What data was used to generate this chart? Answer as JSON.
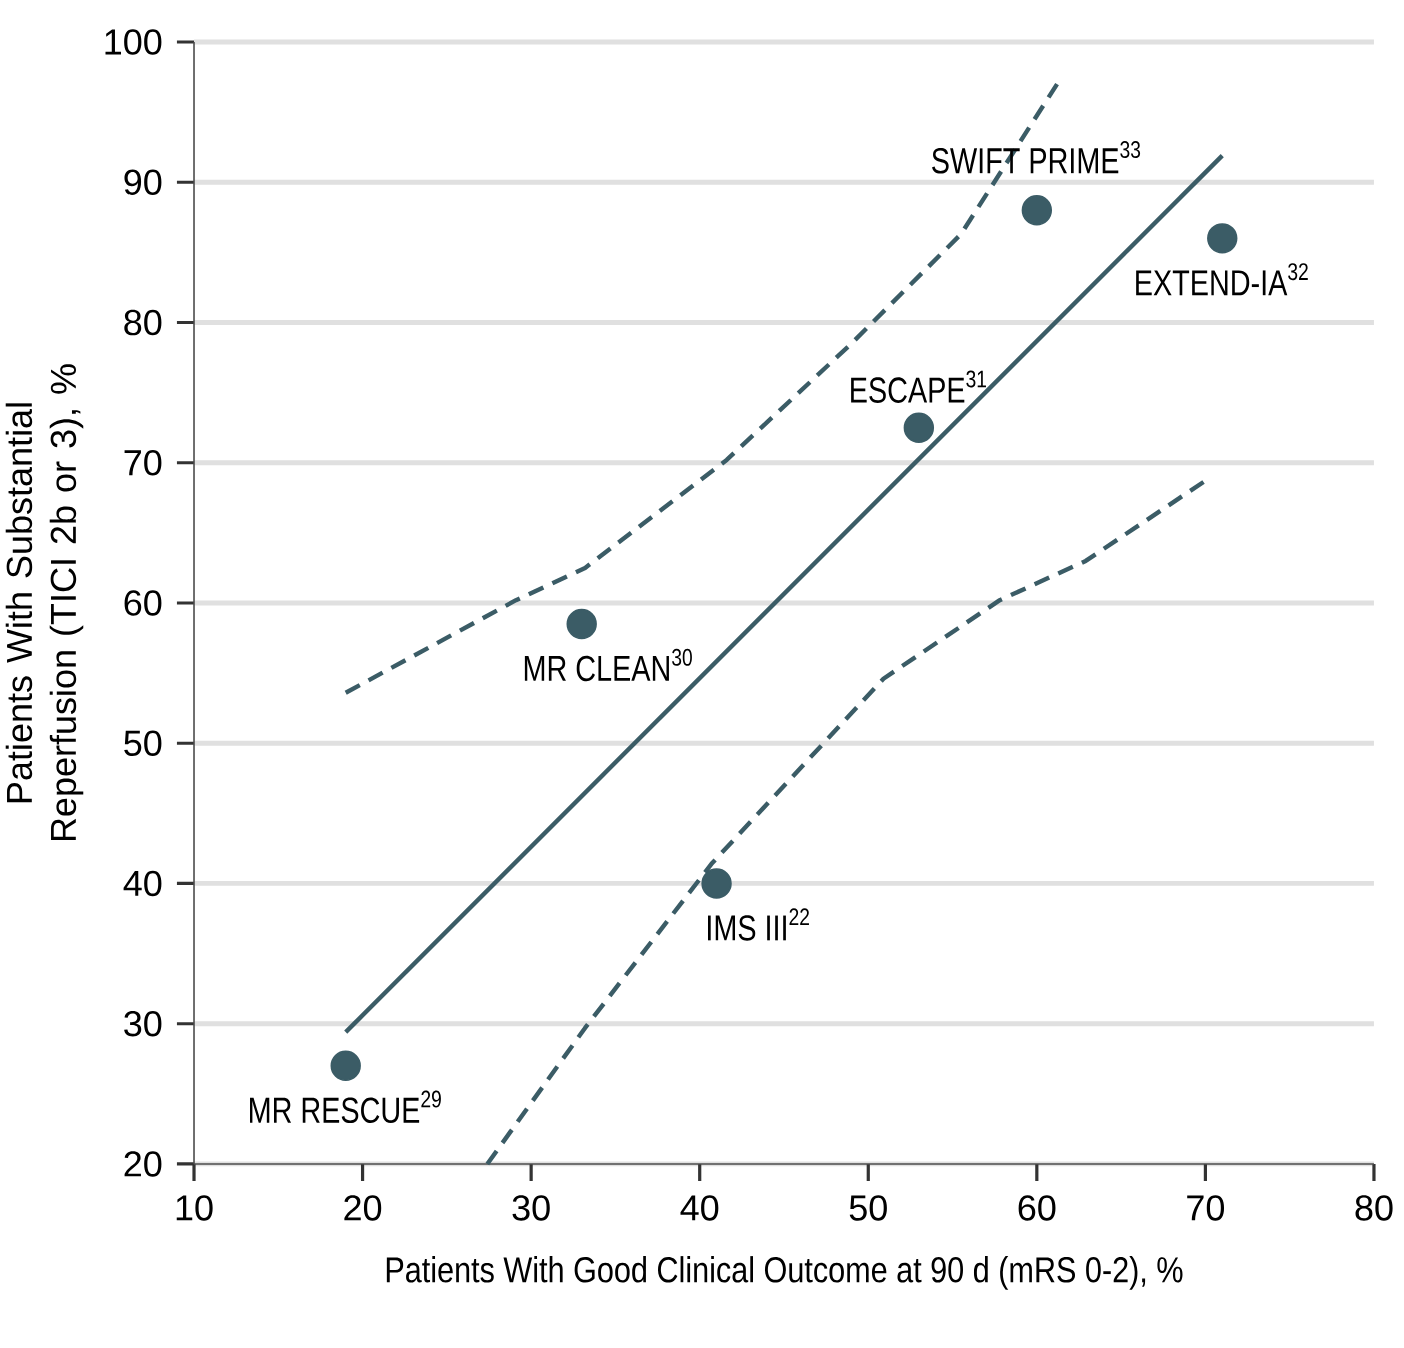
{
  "chart_data": {
    "type": "scatter",
    "xlabel": "Patients With Good Clinical Outcome at 90 d (mRS 0-2), %",
    "ylabel": "Patients With Substantial Reperfusion (TICI 2b or 3), %",
    "xlim": [
      10,
      80
    ],
    "ylim": [
      20,
      100
    ],
    "xticks": [
      10,
      20,
      30,
      40,
      50,
      60,
      70,
      80
    ],
    "yticks": [
      20,
      30,
      40,
      50,
      60,
      70,
      80,
      90,
      100
    ],
    "grid": "y",
    "series": [
      {
        "type": "line",
        "color": "#3b5c66",
        "line_style": "dashed",
        "marker": "none",
        "x": [
          19,
          29.1,
          33.2,
          41.6,
          49,
          55.5,
          61.2
        ],
        "values": [
          53.6,
          60.2,
          62.5,
          70.2,
          78.5,
          86.3,
          97
        ]
      },
      {
        "type": "line",
        "color": "#3b5c66",
        "line_style": "dashed",
        "marker": "none",
        "x": [
          27.4,
          33.2,
          40.7,
          50.9,
          57.8,
          62.9,
          70.1
        ],
        "values": [
          20,
          29.7,
          41.4,
          54.6,
          60.2,
          63,
          68.8
        ]
      },
      {
        "type": "line",
        "color": "#3b5c66",
        "line_style": "solid",
        "marker": "none",
        "x": [
          19,
          71
        ],
        "values": [
          29.4,
          91.9
        ]
      },
      {
        "color": "#3b5c66",
        "marker": "circle",
        "x": [
          19,
          33,
          41,
          53,
          60,
          71
        ],
        "values": [
          27,
          58.5,
          40,
          72.5,
          88,
          86
        ]
      }
    ],
    "annotations": [
      {
        "text": "MR RESCUE$^{29}$",
        "x": 19,
        "y": 27
      },
      {
        "text": "MR CLEAN$^{30}$",
        "x": 33,
        "y": 58.5
      },
      {
        "text": "IMS III$^{22}$",
        "x": 41,
        "y": 40
      },
      {
        "text": "ESCAPE$^{31}$",
        "x": 53,
        "y": 72.5
      },
      {
        "text": "SWIFT PRIME$^{33}$",
        "x": 60,
        "y": 88
      },
      {
        "text": "EXTEND-IA$^{32}$",
        "x": 71,
        "y": 86
      }
    ]
  }
}
